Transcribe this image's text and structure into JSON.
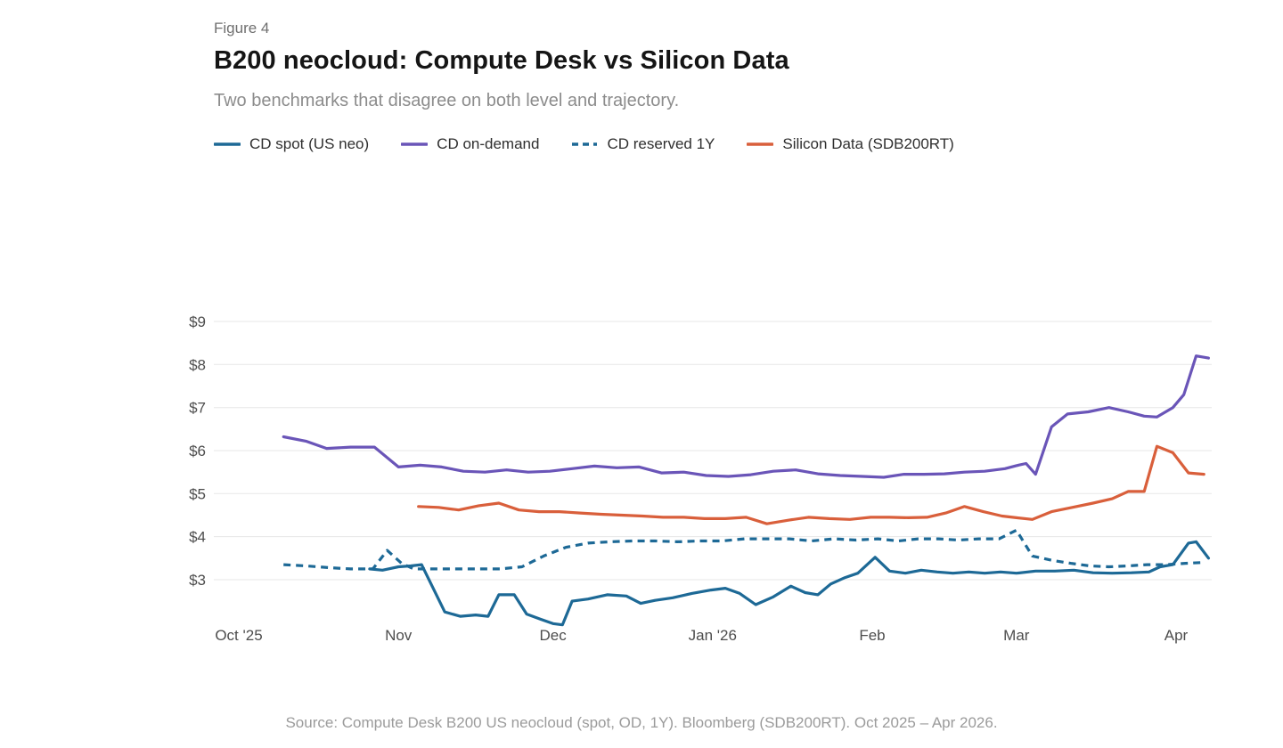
{
  "header": {
    "figure_label": "Figure 4",
    "title": "B200 neocloud: Compute Desk vs Silicon Data",
    "subtitle": "Two benchmarks that disagree on both level and trajectory."
  },
  "footer": {
    "source": "Source: Compute Desk B200 US neocloud (spot, OD, 1Y). Bloomberg (SDB200RT). Oct 2025 – Apr 2026."
  },
  "colors": {
    "blue": "#1d6996",
    "purple": "#6a55b8",
    "orange": "#d95f3b",
    "grid": "#e7e7e7",
    "axis_text": "#4d4d4d"
  },
  "chart_data": {
    "type": "line",
    "title": "B200 neocloud: Compute Desk vs Silicon Data",
    "subtitle": "Two benchmarks that disagree on both level and trajectory.",
    "x_axis": {
      "unit": "months from Oct 2025 (fractional)",
      "total_days": 182,
      "month_lengths": [
        31,
        30,
        31,
        31,
        28,
        31,
        30
      ],
      "ticks": [
        {
          "label": "Oct '25",
          "day": 0
        },
        {
          "label": "Nov",
          "day": 31
        },
        {
          "label": "Dec",
          "day": 61
        },
        {
          "label": "Jan '26",
          "day": 92
        },
        {
          "label": "Feb",
          "day": 123
        },
        {
          "label": "Mar",
          "day": 151
        },
        {
          "label": "Apr",
          "day": 182
        }
      ]
    },
    "y_axis": {
      "prefix": "$",
      "ticks": [
        3,
        4,
        5,
        6,
        7,
        8,
        9
      ],
      "max_tick": 9,
      "visible_range": [
        1.9,
        9.3
      ]
    },
    "legend_position": "top",
    "grid": true,
    "series": [
      {
        "name": "CD spot (US neo)",
        "slug": "cd-spot-us-neo",
        "color_key": "blue",
        "dash": false,
        "points": [
          [
            0.82,
            3.25
          ],
          [
            0.9,
            3.22
          ],
          [
            1.0,
            3.3
          ],
          [
            1.08,
            3.32
          ],
          [
            1.15,
            3.35
          ],
          [
            1.3,
            2.25
          ],
          [
            1.4,
            2.15
          ],
          [
            1.5,
            2.18
          ],
          [
            1.58,
            2.15
          ],
          [
            1.65,
            2.65
          ],
          [
            1.75,
            2.65
          ],
          [
            1.83,
            2.2
          ],
          [
            1.92,
            2.08
          ],
          [
            2.0,
            1.98
          ],
          [
            2.06,
            1.95
          ],
          [
            2.12,
            2.5
          ],
          [
            2.22,
            2.55
          ],
          [
            2.34,
            2.65
          ],
          [
            2.46,
            2.62
          ],
          [
            2.55,
            2.45
          ],
          [
            2.64,
            2.52
          ],
          [
            2.75,
            2.58
          ],
          [
            2.87,
            2.68
          ],
          [
            2.99,
            2.76
          ],
          [
            3.08,
            2.8
          ],
          [
            3.17,
            2.68
          ],
          [
            3.27,
            2.42
          ],
          [
            3.38,
            2.6
          ],
          [
            3.49,
            2.85
          ],
          [
            3.58,
            2.7
          ],
          [
            3.66,
            2.65
          ],
          [
            3.74,
            2.9
          ],
          [
            3.83,
            3.05
          ],
          [
            3.91,
            3.15
          ],
          [
            4.02,
            3.52
          ],
          [
            4.12,
            3.2
          ],
          [
            4.23,
            3.15
          ],
          [
            4.34,
            3.22
          ],
          [
            4.45,
            3.18
          ],
          [
            4.56,
            3.15
          ],
          [
            4.67,
            3.18
          ],
          [
            4.78,
            3.15
          ],
          [
            4.89,
            3.18
          ],
          [
            5.0,
            3.15
          ],
          [
            5.12,
            3.2
          ],
          [
            5.24,
            3.2
          ],
          [
            5.36,
            3.22
          ],
          [
            5.48,
            3.16
          ],
          [
            5.6,
            3.15
          ],
          [
            5.72,
            3.16
          ],
          [
            5.83,
            3.18
          ],
          [
            5.9,
            3.3
          ],
          [
            5.98,
            3.35
          ],
          [
            6.08,
            3.85
          ],
          [
            6.13,
            3.88
          ],
          [
            6.21,
            3.5
          ]
        ]
      },
      {
        "name": "CD on-demand",
        "slug": "cd-on-demand",
        "color_key": "purple",
        "dash": false,
        "points": [
          [
            0.28,
            6.32
          ],
          [
            0.42,
            6.22
          ],
          [
            0.55,
            6.05
          ],
          [
            0.7,
            6.08
          ],
          [
            0.85,
            6.08
          ],
          [
            1.0,
            5.62
          ],
          [
            1.14,
            5.66
          ],
          [
            1.28,
            5.62
          ],
          [
            1.42,
            5.52
          ],
          [
            1.56,
            5.5
          ],
          [
            1.7,
            5.55
          ],
          [
            1.84,
            5.5
          ],
          [
            1.98,
            5.52
          ],
          [
            2.12,
            5.58
          ],
          [
            2.26,
            5.64
          ],
          [
            2.4,
            5.6
          ],
          [
            2.54,
            5.62
          ],
          [
            2.68,
            5.48
          ],
          [
            2.82,
            5.5
          ],
          [
            2.96,
            5.42
          ],
          [
            3.1,
            5.4
          ],
          [
            3.24,
            5.44
          ],
          [
            3.38,
            5.52
          ],
          [
            3.52,
            5.55
          ],
          [
            3.66,
            5.46
          ],
          [
            3.8,
            5.42
          ],
          [
            3.94,
            5.4
          ],
          [
            4.08,
            5.38
          ],
          [
            4.22,
            5.45
          ],
          [
            4.36,
            5.45
          ],
          [
            4.5,
            5.46
          ],
          [
            4.64,
            5.5
          ],
          [
            4.78,
            5.52
          ],
          [
            4.92,
            5.58
          ],
          [
            5.0,
            5.65
          ],
          [
            5.06,
            5.7
          ],
          [
            5.12,
            5.45
          ],
          [
            5.22,
            6.55
          ],
          [
            5.32,
            6.85
          ],
          [
            5.45,
            6.9
          ],
          [
            5.58,
            7.0
          ],
          [
            5.7,
            6.9
          ],
          [
            5.8,
            6.8
          ],
          [
            5.88,
            6.78
          ],
          [
            5.98,
            7.0
          ],
          [
            6.05,
            7.3
          ],
          [
            6.13,
            8.2
          ],
          [
            6.21,
            8.15
          ]
        ]
      },
      {
        "name": "CD reserved 1Y",
        "slug": "cd-reserved-1y",
        "color_key": "blue",
        "dash": true,
        "points": [
          [
            0.28,
            3.35
          ],
          [
            0.42,
            3.32
          ],
          [
            0.56,
            3.28
          ],
          [
            0.7,
            3.25
          ],
          [
            0.84,
            3.25
          ],
          [
            0.93,
            3.68
          ],
          [
            1.02,
            3.38
          ],
          [
            1.1,
            3.25
          ],
          [
            1.24,
            3.25
          ],
          [
            1.38,
            3.25
          ],
          [
            1.52,
            3.25
          ],
          [
            1.66,
            3.25
          ],
          [
            1.8,
            3.3
          ],
          [
            1.94,
            3.55
          ],
          [
            2.08,
            3.75
          ],
          [
            2.22,
            3.85
          ],
          [
            2.36,
            3.88
          ],
          [
            2.5,
            3.9
          ],
          [
            2.64,
            3.9
          ],
          [
            2.78,
            3.88
          ],
          [
            2.92,
            3.9
          ],
          [
            3.06,
            3.9
          ],
          [
            3.2,
            3.95
          ],
          [
            3.34,
            3.95
          ],
          [
            3.48,
            3.95
          ],
          [
            3.62,
            3.9
          ],
          [
            3.76,
            3.95
          ],
          [
            3.9,
            3.92
          ],
          [
            4.04,
            3.95
          ],
          [
            4.18,
            3.9
          ],
          [
            4.32,
            3.95
          ],
          [
            4.46,
            3.95
          ],
          [
            4.6,
            3.92
          ],
          [
            4.74,
            3.95
          ],
          [
            4.88,
            3.95
          ],
          [
            5.0,
            4.15
          ],
          [
            5.1,
            3.55
          ],
          [
            5.22,
            3.45
          ],
          [
            5.34,
            3.38
          ],
          [
            5.46,
            3.32
          ],
          [
            5.58,
            3.3
          ],
          [
            5.7,
            3.32
          ],
          [
            5.82,
            3.35
          ],
          [
            5.94,
            3.35
          ],
          [
            6.06,
            3.38
          ],
          [
            6.18,
            3.4
          ]
        ]
      },
      {
        "name": "Silicon Data (SDB200RT)",
        "slug": "silicon-data-sdb200rt",
        "color_key": "orange",
        "dash": false,
        "points": [
          [
            1.13,
            4.7
          ],
          [
            1.26,
            4.68
          ],
          [
            1.39,
            4.62
          ],
          [
            1.52,
            4.72
          ],
          [
            1.65,
            4.78
          ],
          [
            1.78,
            4.62
          ],
          [
            1.91,
            4.58
          ],
          [
            2.04,
            4.58
          ],
          [
            2.17,
            4.55
          ],
          [
            2.3,
            4.52
          ],
          [
            2.43,
            4.5
          ],
          [
            2.56,
            4.48
          ],
          [
            2.69,
            4.45
          ],
          [
            2.82,
            4.45
          ],
          [
            2.95,
            4.42
          ],
          [
            3.08,
            4.42
          ],
          [
            3.21,
            4.45
          ],
          [
            3.34,
            4.3
          ],
          [
            3.47,
            4.38
          ],
          [
            3.6,
            4.45
          ],
          [
            3.73,
            4.42
          ],
          [
            3.86,
            4.4
          ],
          [
            3.99,
            4.45
          ],
          [
            4.12,
            4.45
          ],
          [
            4.25,
            4.44
          ],
          [
            4.38,
            4.45
          ],
          [
            4.51,
            4.55
          ],
          [
            4.64,
            4.7
          ],
          [
            4.77,
            4.58
          ],
          [
            4.9,
            4.48
          ],
          [
            5.0,
            4.44
          ],
          [
            5.1,
            4.4
          ],
          [
            5.22,
            4.58
          ],
          [
            5.35,
            4.68
          ],
          [
            5.48,
            4.78
          ],
          [
            5.6,
            4.88
          ],
          [
            5.7,
            5.05
          ],
          [
            5.8,
            5.05
          ],
          [
            5.88,
            6.1
          ],
          [
            5.98,
            5.95
          ],
          [
            6.08,
            5.48
          ],
          [
            6.18,
            5.45
          ]
        ]
      }
    ]
  }
}
